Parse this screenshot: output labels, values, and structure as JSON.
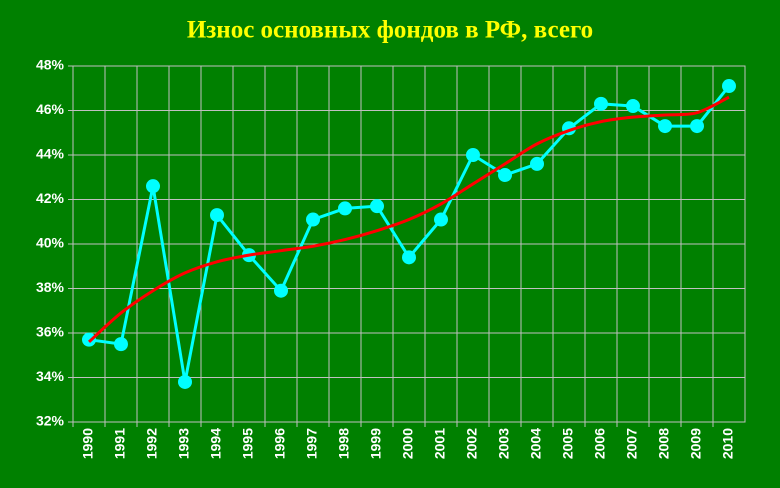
{
  "chart_data": {
    "type": "line",
    "title": "Износ основных фондов в РФ, всего",
    "categories": [
      "1990",
      "1991",
      "1992",
      "1993",
      "1994",
      "1995",
      "1996",
      "1997",
      "1998",
      "1999",
      "2000",
      "2001",
      "2002",
      "2003",
      "2004",
      "2005",
      "2006",
      "2007",
      "2008",
      "2009",
      "2010"
    ],
    "series": [
      {
        "color": "#00ffff",
        "markers": true,
        "smooth": false,
        "values": [
          35.7,
          35.5,
          42.6,
          33.8,
          41.3,
          39.5,
          37.9,
          41.1,
          41.6,
          41.7,
          39.4,
          41.1,
          44.0,
          43.1,
          43.6,
          45.2,
          46.3,
          46.2,
          45.3,
          45.3,
          47.1
        ]
      },
      {
        "color": "#ff0000",
        "markers": false,
        "smooth": true,
        "values": [
          35.6,
          36.9,
          37.9,
          38.7,
          39.2,
          39.5,
          39.7,
          39.9,
          40.2,
          40.6,
          41.1,
          41.8,
          42.7,
          43.6,
          44.5,
          45.1,
          45.5,
          45.7,
          45.8,
          45.9,
          46.6
        ]
      }
    ],
    "ylim": [
      32,
      48
    ],
    "yticks": [
      {
        "value": 32,
        "label": "32%"
      },
      {
        "value": 34,
        "label": "34%"
      },
      {
        "value": 36,
        "label": "36%"
      },
      {
        "value": 38,
        "label": "38%"
      },
      {
        "value": 40,
        "label": "40%"
      },
      {
        "value": 42,
        "label": "42%"
      },
      {
        "value": 44,
        "label": "44%"
      },
      {
        "value": 46,
        "label": "46%"
      },
      {
        "value": 48,
        "label": "48%"
      }
    ],
    "grid": true
  }
}
